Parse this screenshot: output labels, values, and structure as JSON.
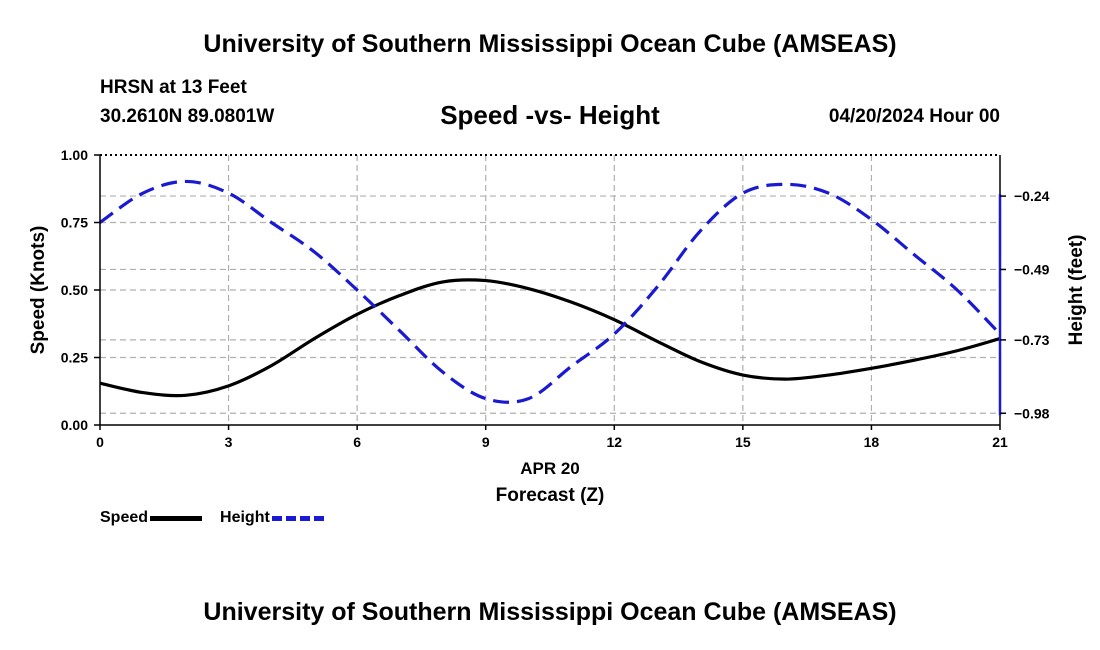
{
  "header": {
    "title": "University of Southern Mississippi Ocean Cube (AMSEAS)",
    "station": "HRSN at 13 Feet",
    "coords": "30.2610N  89.0801W",
    "subtitle": "Speed -vs- Height",
    "datetime": "04/20/2024 Hour 00"
  },
  "footer": {
    "title": "University of Southern Mississippi Ocean Cube (AMSEAS)"
  },
  "legend": {
    "speed_label": "Speed",
    "height_label": "Height"
  },
  "colors": {
    "speed": "#000000",
    "height": "#1a1ad0",
    "grid": "#b0b0b0"
  },
  "chart_data": {
    "type": "line",
    "title": "Speed -vs- Height",
    "xlabel": "Forecast (Z)",
    "xdate": "APR 20",
    "ylabel_left": "Speed (Knots)",
    "ylabel_right": "Height (feet)",
    "xlim": [
      0,
      21
    ],
    "ylim_left": [
      0,
      1.0
    ],
    "ylim_right": [
      -1.02,
      -0.1
    ],
    "x_ticks": [
      0,
      3,
      6,
      9,
      12,
      15,
      18,
      21
    ],
    "x_tick_labels": [
      "0",
      "3",
      "6",
      "9",
      "12",
      "15",
      "18",
      "21"
    ],
    "y_left_ticks": [
      0,
      0.25,
      0.5,
      0.75,
      1.0
    ],
    "y_left_tick_labels": [
      "0.00",
      "0.25",
      "0.50",
      "0.75",
      "1.00"
    ],
    "y_right_ticks": [
      -0.24,
      -0.49,
      -0.73,
      -0.98
    ],
    "y_right_tick_labels": [
      "−0.24",
      "−0.49",
      "−0.73",
      "−0.98"
    ],
    "grid": true,
    "series": [
      {
        "name": "Speed",
        "axis": "left",
        "style": "solid",
        "x": [
          0,
          1,
          2,
          3,
          4,
          5,
          6,
          7,
          8,
          9,
          10,
          11,
          12,
          13,
          14,
          15,
          16,
          17,
          18,
          19,
          20,
          21
        ],
        "values": [
          0.155,
          0.12,
          0.11,
          0.145,
          0.22,
          0.32,
          0.41,
          0.48,
          0.53,
          0.535,
          0.505,
          0.455,
          0.39,
          0.31,
          0.235,
          0.185,
          0.17,
          0.185,
          0.21,
          0.24,
          0.275,
          0.32
        ]
      },
      {
        "name": "Height",
        "axis": "right",
        "style": "dashed",
        "x": [
          0,
          1,
          2,
          3,
          4,
          5,
          6,
          7,
          8,
          9,
          10,
          11,
          12,
          13,
          14,
          15,
          16,
          17,
          18,
          19,
          20,
          21
        ],
        "values": [
          -0.33,
          -0.23,
          -0.19,
          -0.23,
          -0.33,
          -0.43,
          -0.56,
          -0.7,
          -0.84,
          -0.93,
          -0.93,
          -0.82,
          -0.71,
          -0.55,
          -0.36,
          -0.23,
          -0.2,
          -0.23,
          -0.32,
          -0.44,
          -0.56,
          -0.71
        ]
      }
    ]
  }
}
